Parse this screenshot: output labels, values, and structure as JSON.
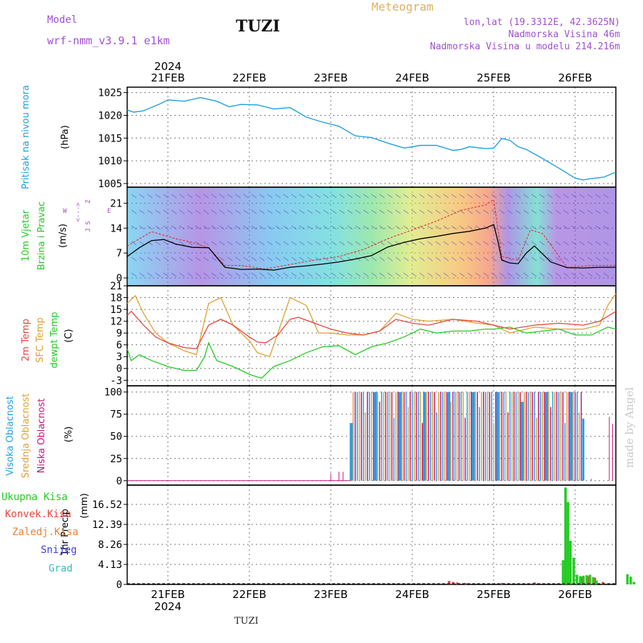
{
  "header": {
    "model_label": "Model",
    "model_name": "wrf-nmm_v3.9.1  e1km",
    "station": "TUZI",
    "meteogram": "Meteogram",
    "lonlat": "lon,lat (19.3312E, 42.3625N)",
    "altitude": "Nadmorska Visina 46m",
    "model_altitude": "Nadmorska Visina u modelu 214.216m",
    "footer_station": "TUZI",
    "watermark": "made by Angel"
  },
  "colors": {
    "pressure": "#1fa0e0",
    "temp2m": "#e8453c",
    "sfc": "#e0a030",
    "dewpt": "#22cc22",
    "high_cloud": "#20a0e8",
    "mid_cloud": "#e0a030",
    "low_cloud": "#c8147a",
    "total_precip": "#22cc22",
    "conv_precip": "#e8453c",
    "frozen_precip": "#f08030",
    "snow": "#4040e0",
    "graupel": "#30c0c0",
    "header_purple": "#a050d0",
    "header_orange": "#e0b060"
  },
  "chart_data": {
    "type": "line",
    "time_axis": {
      "start_label": "21FEB 2024",
      "year": "2024",
      "dates": [
        "21FEB",
        "22FEB",
        "23FEB",
        "24FEB",
        "25FEB",
        "26FEB"
      ],
      "range_days": [
        -0.5,
        5.5
      ]
    },
    "panels": [
      {
        "id": "pressure",
        "ylabel_lines": [
          "Pritisak na nivou mora"
        ],
        "unit": "(hPa)",
        "yticks": [
          1005,
          1010,
          1015,
          1020,
          1025
        ],
        "ylim": [
          1004.2,
          1026.2
        ],
        "series": [
          {
            "key": "pressure",
            "x": [
              -0.5,
              -0.42,
              -0.3,
              -0.1,
              0,
              0.2,
              0.4,
              0.6,
              0.75,
              0.9,
              1.1,
              1.3,
              1.5,
              1.7,
              1.9,
              2.1,
              2.3,
              2.5,
              2.7,
              2.9,
              3.1,
              3.3,
              3.5,
              3.6,
              3.7,
              3.9,
              4.0,
              4.1,
              4.2,
              4.3,
              4.4,
              4.6,
              4.8,
              5.0,
              5.1,
              5.2,
              5.35,
              5.5
            ],
            "y": [
              1021.2,
              1020.7,
              1021.0,
              1022.5,
              1023.4,
              1023.1,
              1023.9,
              1023.1,
              1021.9,
              1022.4,
              1022.3,
              1021.4,
              1021.7,
              1019.6,
              1018.5,
              1017.6,
              1015.5,
              1015.1,
              1013.9,
              1012.8,
              1013.4,
              1013.4,
              1012.3,
              1012.5,
              1013.1,
              1012.7,
              1012.8,
              1014.9,
              1014.5,
              1013.1,
              1012.5,
              1010.5,
              1008.4,
              1006.2,
              1005.8,
              1006.1,
              1006.4,
              1007.5
            ]
          }
        ]
      },
      {
        "id": "wind",
        "ylabel_lines": [
          "10m Vjetar",
          "Brzina i Pravac"
        ],
        "unit": "(m/s)",
        "compass": [
          "Z",
          "<--->",
          "S",
          "W",
          "E",
          "J"
        ],
        "yticks": [
          0,
          7,
          14,
          21
        ],
        "ylim": [
          -2.2,
          25.5
        ],
        "series": [
          {
            "key": "wind_speed",
            "x": [
              -0.5,
              -0.35,
              -0.2,
              -0.05,
              0.1,
              0.3,
              0.5,
              0.7,
              0.9,
              1.1,
              1.3,
              1.5,
              1.7,
              1.9,
              2.1,
              2.3,
              2.5,
              2.7,
              2.9,
              3.1,
              3.3,
              3.5,
              3.7,
              3.9,
              4.0,
              4.05,
              4.1,
              4.2,
              4.3,
              4.4,
              4.5,
              4.7,
              4.9,
              5.1,
              5.3,
              5.5
            ],
            "y": [
              6.0,
              8.5,
              10.5,
              10.8,
              9.5,
              8.6,
              8.5,
              3.0,
              2.4,
              2.5,
              2.2,
              3.0,
              3.4,
              3.9,
              4.5,
              5.3,
              6.3,
              8.7,
              10.0,
              11.0,
              11.7,
              12.5,
              13.1,
              14.0,
              15.0,
              10.5,
              5.0,
              4.2,
              4.0,
              7.0,
              9.0,
              4.5,
              2.9,
              2.8,
              3.0,
              3.0
            ]
          },
          {
            "key": "wind_gust",
            "x": [
              -0.5,
              -0.2,
              0.1,
              0.3,
              0.5,
              0.7,
              0.9,
              1.2,
              1.5,
              1.8,
              2.1,
              2.4,
              2.7,
              3.0,
              3.3,
              3.6,
              3.9,
              4.0,
              4.1,
              4.3,
              4.45,
              4.6,
              4.9,
              5.2,
              5.5
            ],
            "y": [
              9.0,
              13.0,
              11.0,
              10.0,
              8.5,
              3.5,
              3.5,
              2.5,
              3.8,
              5.0,
              6.0,
              8.0,
              11.0,
              13.5,
              16.0,
              19.0,
              20.5,
              22.0,
              6.0,
              5.0,
              13.5,
              12.5,
              3.0,
              3.5,
              3.5
            ]
          }
        ]
      },
      {
        "id": "temperature",
        "ylabel_lines": [
          "2m Temp",
          "SFC Temp",
          "dewpt Temp"
        ],
        "unit": "(C)",
        "yticks": [
          -3,
          0,
          3,
          6,
          9,
          12,
          15,
          18,
          21
        ],
        "ylim": [
          -4.4,
          21
        ],
        "series": [
          {
            "key": "temp2m",
            "x": [
              -0.5,
              -0.45,
              -0.3,
              -0.15,
              0.0,
              0.2,
              0.35,
              0.5,
              0.65,
              0.8,
              1.0,
              1.1,
              1.2,
              1.35,
              1.5,
              1.6,
              1.8,
              2.0,
              2.2,
              2.4,
              2.6,
              2.8,
              3.0,
              3.2,
              3.5,
              3.8,
              4.0,
              4.2,
              4.5,
              4.8,
              5.1,
              5.3,
              5.5
            ],
            "y": [
              13.5,
              14.5,
              11.0,
              8.0,
              6.5,
              5.3,
              5.0,
              11.0,
              12.5,
              11.0,
              8.0,
              6.7,
              6.5,
              8.5,
              12.5,
              13.0,
              11.5,
              10.0,
              9.0,
              8.5,
              9.5,
              12.5,
              11.5,
              11.0,
              12.5,
              12.0,
              11.0,
              10.0,
              11.0,
              11.5,
              11.0,
              12.0,
              14.5
            ]
          },
          {
            "key": "sfc",
            "x": [
              -0.5,
              -0.4,
              -0.3,
              -0.15,
              0.0,
              0.2,
              0.35,
              0.5,
              0.65,
              0.8,
              1.0,
              1.1,
              1.25,
              1.4,
              1.5,
              1.7,
              1.85,
              2.0,
              2.2,
              2.4,
              2.6,
              2.8,
              3.0,
              3.2,
              3.5,
              3.8,
              4.0,
              4.2,
              4.5,
              4.8,
              5.1,
              5.3,
              5.4,
              5.5
            ],
            "y": [
              16.5,
              18.5,
              14.0,
              9.0,
              6.5,
              4.5,
              3.5,
              16.5,
              18.0,
              11.0,
              7.0,
              4.0,
              3.0,
              12.0,
              18.0,
              16.0,
              9.0,
              9.0,
              8.5,
              8.5,
              9.5,
              14.0,
              12.5,
              12.0,
              12.5,
              11.5,
              11.0,
              9.0,
              10.5,
              10.0,
              10.0,
              11.0,
              16.0,
              19.0
            ]
          },
          {
            "key": "dewpt",
            "x": [
              -0.5,
              -0.45,
              -0.35,
              -0.2,
              0.0,
              0.2,
              0.35,
              0.45,
              0.5,
              0.6,
              0.8,
              1.0,
              1.15,
              1.3,
              1.5,
              1.7,
              1.9,
              2.1,
              2.3,
              2.5,
              2.7,
              2.9,
              3.1,
              3.3,
              3.5,
              3.7,
              3.9,
              4.0,
              4.2,
              4.4,
              4.6,
              4.8,
              5.0,
              5.2,
              5.4,
              5.5
            ],
            "y": [
              5.0,
              2.0,
              3.5,
              2.0,
              0.5,
              -0.5,
              -0.5,
              3.0,
              6.5,
              2.0,
              0.5,
              -1.5,
              -2.5,
              0.5,
              2.0,
              4.0,
              5.5,
              5.8,
              3.5,
              5.5,
              6.5,
              8.0,
              10.0,
              9.0,
              9.5,
              9.5,
              10.0,
              10.0,
              10.5,
              9.0,
              9.5,
              10.0,
              8.5,
              8.5,
              10.5,
              10.0
            ]
          }
        ]
      },
      {
        "id": "cloud",
        "ylabel_lines": [
          "Visoka Oblacnost",
          "Srednja Oblacnost",
          "Niska Oblacnost"
        ],
        "unit": "(%)",
        "yticks": [
          0,
          25,
          50,
          75,
          100
        ],
        "ylim": [
          -5,
          107
        ],
        "segments": [
          {
            "from": 2.25,
            "to": 4.0,
            "high": 100,
            "mid": 100,
            "low": 100
          },
          {
            "from": 4.0,
            "to": 5.5,
            "high": 100,
            "mid": 100,
            "low": 100
          }
        ],
        "notes": [
          "8",
          "10"
        ]
      },
      {
        "id": "precip",
        "ylabel_lines": [
          "1hr Precip"
        ],
        "unit": "(mm)",
        "legend": [
          "Ukupna Kisa",
          "Konvek.Kisa",
          "Zaledj.Kisa",
          "Snijeg",
          "Grad"
        ],
        "yticks": [
          0,
          4.13,
          8.26,
          12.39,
          16.52
        ],
        "ytick_labels": [
          "0",
          "4.13",
          "8.26",
          "12.39",
          "16.52"
        ],
        "ylim": [
          0,
          20.5
        ],
        "total_bars": [
          {
            "x": 4.85,
            "v": 5.0
          },
          {
            "x": 4.88,
            "v": 20.0
          },
          {
            "x": 4.91,
            "v": 17.0
          },
          {
            "x": 4.94,
            "v": 9.0
          },
          {
            "x": 4.98,
            "v": 5.5
          },
          {
            "x": 5.02,
            "v": 2.0
          },
          {
            "x": 5.06,
            "v": 1.7
          },
          {
            "x": 5.1,
            "v": 1.8
          },
          {
            "x": 5.14,
            "v": 1.9
          },
          {
            "x": 5.18,
            "v": 2.0
          },
          {
            "x": 5.22,
            "v": 1.5
          },
          {
            "x": 5.26,
            "v": 0.8
          },
          {
            "x": 5.64,
            "v": 2.1
          },
          {
            "x": 5.68,
            "v": 1.6
          },
          {
            "x": 5.72,
            "v": 0.5
          }
        ],
        "conv_bars": [
          {
            "x": 3.45,
            "v": 0.7
          },
          {
            "x": 3.5,
            "v": 0.5
          },
          {
            "x": 3.55,
            "v": 0.4
          },
          {
            "x": 3.65,
            "v": 0.3
          },
          {
            "x": 4.1,
            "v": 0.3
          },
          {
            "x": 4.5,
            "v": 0.4
          },
          {
            "x": 4.9,
            "v": 0.8
          },
          {
            "x": 5.08,
            "v": 1.6
          },
          {
            "x": 5.16,
            "v": 1.7
          },
          {
            "x": 5.24,
            "v": 1.4
          },
          {
            "x": 5.34,
            "v": 0.5
          }
        ]
      }
    ]
  }
}
